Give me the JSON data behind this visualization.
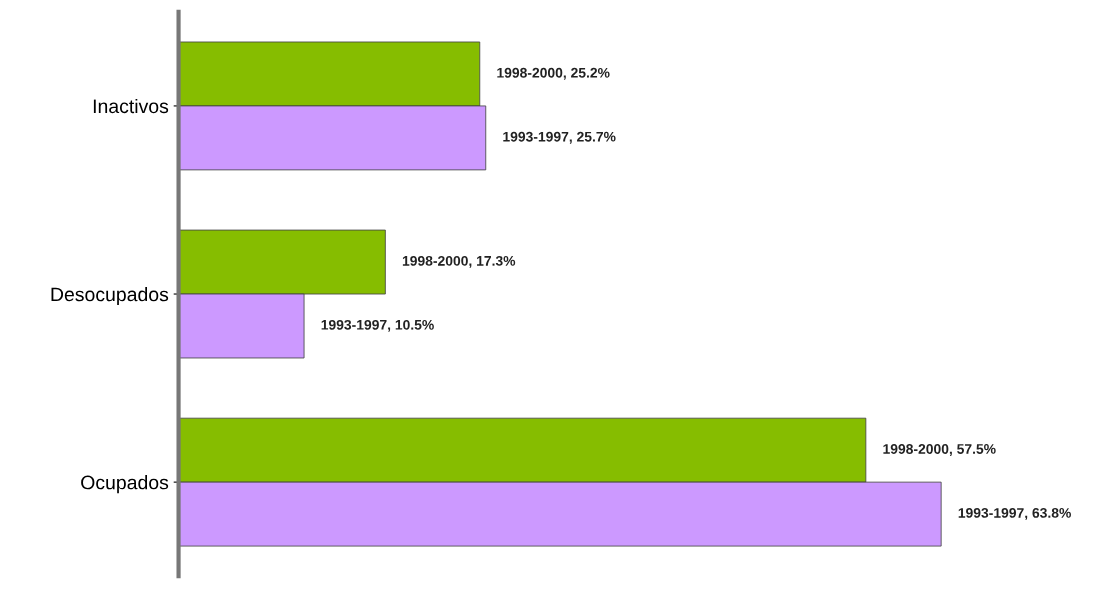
{
  "chart_data": {
    "type": "bar",
    "orientation": "horizontal",
    "categories": [
      "Inactivos",
      "Desocupados",
      "Ocupados"
    ],
    "series": [
      {
        "color": "#86bd00",
        "values": [
          25.2,
          17.3,
          57.5
        ],
        "value_labels": [
          "1998-2000, 25.2%",
          "1998-2000, 17.3%",
          "1998-2000, 57.5%"
        ]
      },
      {
        "color": "#cc99ff",
        "values": [
          25.7,
          10.5,
          63.8
        ],
        "value_labels": [
          "1993-1997, 25.7%",
          "1993-1997, 10.5%",
          "1993-1997, 63.8%"
        ]
      }
    ],
    "tick_labels": "y",
    "grid": false,
    "legend": false
  }
}
